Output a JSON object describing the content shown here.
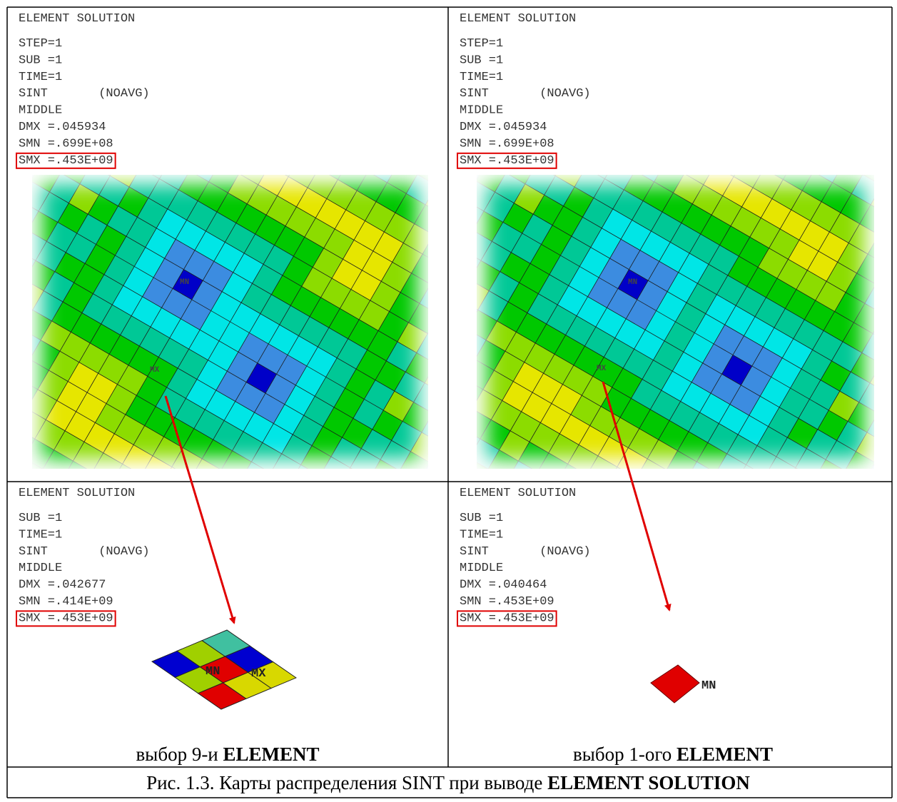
{
  "panels": [
    {
      "header": "ELEMENT SOLUTION",
      "lines": [
        "STEP=1",
        "SUB =1",
        "TIME=1",
        "SINT       (NOAVG)",
        "MIDDLE",
        "DMX =.045934",
        "SMN =.699E+08"
      ],
      "max_line": "SMX =.453E+09",
      "mesh_labels": [
        "MN",
        "MX"
      ]
    },
    {
      "header": "ELEMENT SOLUTION",
      "lines": [
        "STEP=1",
        "SUB =1",
        "TIME=1",
        "SINT       (NOAVG)",
        "MIDDLE",
        "DMX =.045934",
        "SMN =.699E+08"
      ],
      "max_line": "SMX =.453E+09",
      "mesh_labels": [
        "MN",
        "MX"
      ]
    },
    {
      "header": "ELEMENT SOLUTION",
      "lines": [
        "SUB =1",
        "TIME=1",
        "SINT       (NOAVG)",
        "MIDDLE",
        "DMX =.042677",
        "SMN =.414E+09"
      ],
      "max_line": "SMX =.453E+09",
      "mesh_labels": [
        "MN",
        "MX"
      ],
      "caption": {
        "text": "выбор 9-и",
        "bold": "ELEMENT"
      }
    },
    {
      "header": "ELEMENT SOLUTION",
      "lines": [
        "SUB =1",
        "TIME=1",
        "SINT       (NOAVG)",
        "MIDDLE",
        "DMX =.040464",
        "SMN =.453E+09"
      ],
      "max_line": "SMX =.453E+09",
      "mesh_labels": [
        "MN"
      ],
      "caption": {
        "text": "выбор 1-ого",
        "bold": "ELEMENT"
      }
    }
  ],
  "figure_caption": {
    "text": "Рис. 1.3. Карты распределения SINT при выводе",
    "bold": "ELEMENT SOLUTION"
  }
}
